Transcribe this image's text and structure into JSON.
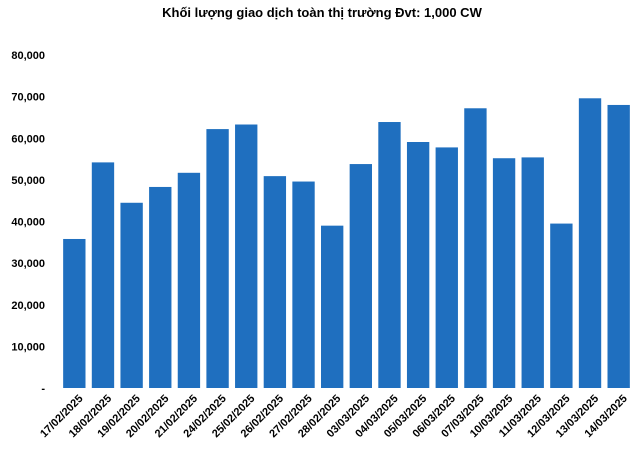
{
  "chart_data": {
    "type": "bar",
    "title": "Khối lượng giao dịch toàn thị trường Đvt: 1,000 CW",
    "xlabel": "",
    "ylabel": "",
    "ylim": [
      0,
      80000
    ],
    "yticks": [
      0,
      10000,
      20000,
      30000,
      40000,
      50000,
      60000,
      70000,
      80000
    ],
    "ytick_labels": [
      "-",
      "10,000",
      "20,000",
      "30,000",
      "40,000",
      "50,000",
      "60,000",
      "70,000",
      "80,000"
    ],
    "categories": [
      "17/02/2025",
      "18/02/2025",
      "19/02/2025",
      "20/02/2025",
      "21/02/2025",
      "24/02/2025",
      "25/02/2025",
      "26/02/2025",
      "27/02/2025",
      "28/02/2025",
      "03/03/2025",
      "04/03/2025",
      "05/03/2025",
      "06/03/2025",
      "07/03/2025",
      "10/03/2025",
      "11/03/2025",
      "12/03/2025",
      "13/03/2025",
      "14/03/2025"
    ],
    "values": [
      35800,
      54200,
      44500,
      48300,
      51700,
      62200,
      63300,
      50900,
      49600,
      39000,
      53800,
      63900,
      59100,
      57800,
      67200,
      55200,
      55400,
      39500,
      69600,
      68000
    ],
    "grid": false,
    "bar_color": "#1F6FBF"
  }
}
